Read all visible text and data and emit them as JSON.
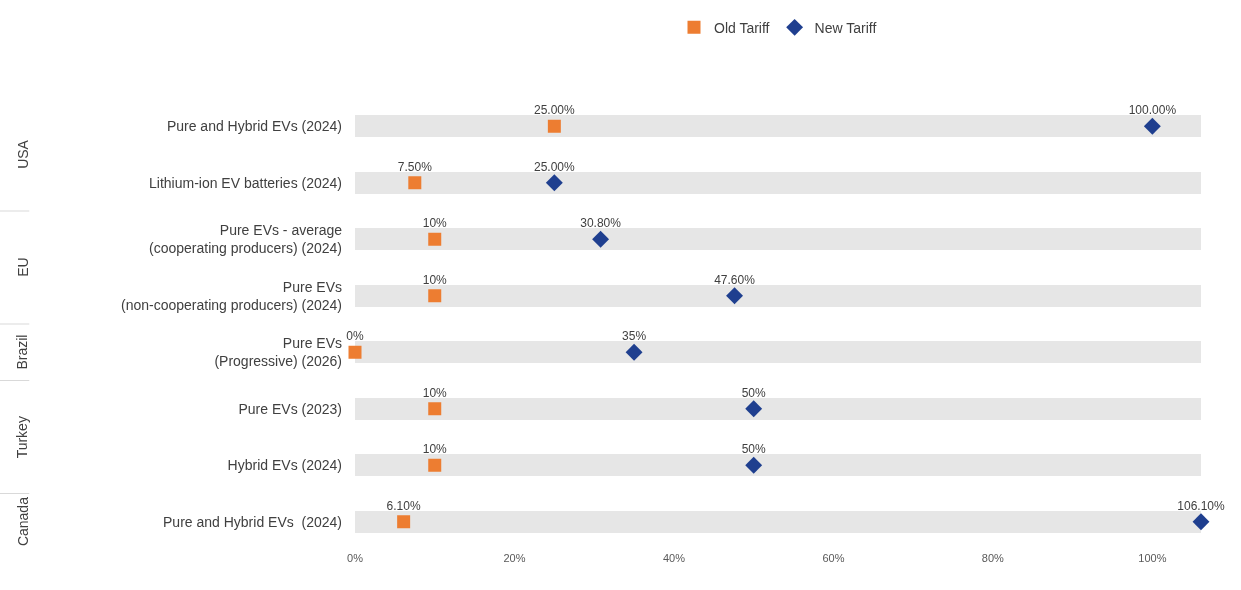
{
  "chart_data": {
    "type": "scatter",
    "orientation": "horizontal",
    "categories": [
      "Pure and Hybrid EVs (2024)",
      "Lithium-ion EV batteries (2024)",
      "Pure EVs - average\n(cooperating producers) (2024)",
      "Pure EVs\n(non-cooperating producers) (2024)",
      "Pure EVs\n(Progressive) (2026)",
      "Pure EVs (2023)",
      "Hybrid EVs (2024)",
      "Pure and Hybrid EVs  (2024)"
    ],
    "series": [
      {
        "name": "Old Tariff",
        "color": "#ed7d31",
        "marker": "square",
        "values": [
          25,
          7.5,
          10,
          10,
          0,
          10,
          10,
          6.1
        ],
        "value_labels": [
          "25.00%",
          "7.50%",
          "10%",
          "10%",
          "0%",
          "10%",
          "10%",
          "6.10%"
        ]
      },
      {
        "name": "New Tariff",
        "color": "#1f3f8f",
        "marker": "diamond",
        "values": [
          100,
          25,
          30.8,
          47.6,
          35,
          50,
          50,
          106.1
        ],
        "value_labels": [
          "100.00%",
          "25.00%",
          "30.80%",
          "47.60%",
          "35%",
          "50%",
          "50%",
          "106.10%"
        ]
      }
    ],
    "annotations": [
      "USA",
      "EU",
      "Brazil",
      "Turkey",
      "Canada"
    ],
    "xlim": [
      0,
      106.1
    ],
    "xticks": [
      {
        "value": 0,
        "label": "0%"
      },
      {
        "value": 20,
        "label": "20%"
      },
      {
        "value": 40,
        "label": "40%"
      },
      {
        "value": 60,
        "label": "60%"
      },
      {
        "value": 80,
        "label": "80%"
      },
      {
        "value": 100,
        "label": "100%"
      }
    ],
    "grid": "y",
    "legend": "top"
  }
}
